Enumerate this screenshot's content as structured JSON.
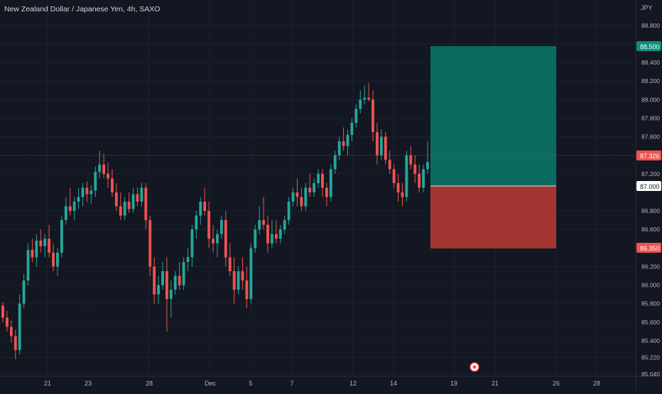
{
  "header": {
    "title": "New Zealand Dollar / Japanese Yen, 4h, SAXO"
  },
  "price_axis": {
    "currency": "JPY",
    "ticks": [
      "88.800",
      "88.600",
      "88.400",
      "88.200",
      "88.000",
      "87.800",
      "87.600",
      "87.400",
      "87.200",
      "86.800",
      "86.600",
      "86.200",
      "86.000",
      "85.800",
      "85.600",
      "85.400",
      "85.220",
      "85.040"
    ],
    "current_price_label": "87.326",
    "take_profit_label": "88.500",
    "entry_label": "87.000",
    "stop_loss_label": "86.350"
  },
  "time_axis": {
    "labels": [
      "21",
      "23",
      "28",
      "Dec",
      "5",
      "7",
      "12",
      "14",
      "19",
      "21",
      "26",
      "28"
    ]
  },
  "colors": {
    "background": "#131722",
    "up": "#26a69a",
    "down": "#ef5350",
    "profit_zone": "#0b6b5f",
    "loss_zone": "#a33533",
    "grid": "#1e2230",
    "text": "#b2b5be"
  },
  "chart_data": {
    "type": "candlestick",
    "title": "New Zealand Dollar / Japanese Yen, 4h, SAXO",
    "xlabel": "",
    "ylabel": "",
    "ylim": [
      85.04,
      88.86
    ],
    "x_tick_labels": [
      "21",
      "23",
      "28",
      "Dec",
      "5",
      "7",
      "12",
      "14",
      "19",
      "21",
      "26",
      "28"
    ],
    "current_price": 87.326,
    "position": {
      "take_profit": 88.5,
      "entry": 87.0,
      "stop_loss": 86.35
    },
    "candles": [
      [
        85.78,
        85.82,
        85.6,
        85.65
      ],
      [
        85.65,
        85.72,
        85.5,
        85.55
      ],
      [
        85.55,
        85.62,
        85.38,
        85.45
      ],
      [
        85.45,
        85.52,
        85.2,
        85.3
      ],
      [
        85.3,
        85.9,
        85.25,
        85.8
      ],
      [
        85.8,
        86.12,
        85.75,
        86.05
      ],
      [
        86.05,
        86.45,
        86.0,
        86.38
      ],
      [
        86.38,
        86.5,
        86.25,
        86.3
      ],
      [
        86.3,
        86.55,
        86.2,
        86.48
      ],
      [
        86.48,
        86.6,
        86.35,
        86.42
      ],
      [
        86.42,
        86.55,
        86.3,
        86.5
      ],
      [
        86.5,
        86.65,
        86.3,
        86.35
      ],
      [
        86.35,
        86.45,
        86.15,
        86.2
      ],
      [
        86.2,
        86.4,
        86.1,
        86.35
      ],
      [
        86.35,
        86.75,
        86.3,
        86.7
      ],
      [
        86.7,
        86.95,
        86.65,
        86.85
      ],
      [
        86.85,
        87.05,
        86.75,
        86.8
      ],
      [
        86.8,
        86.95,
        86.7,
        86.9
      ],
      [
        86.9,
        87.05,
        86.82,
        86.95
      ],
      [
        86.95,
        87.1,
        86.85,
        87.05
      ],
      [
        87.05,
        87.12,
        86.9,
        86.98
      ],
      [
        86.98,
        87.08,
        86.88,
        87.02
      ],
      [
        87.02,
        87.28,
        86.95,
        87.22
      ],
      [
        87.22,
        87.45,
        87.15,
        87.3
      ],
      [
        87.3,
        87.42,
        87.15,
        87.2
      ],
      [
        87.2,
        87.32,
        87.05,
        87.15
      ],
      [
        87.15,
        87.25,
        86.95,
        87.0
      ],
      [
        87.0,
        87.1,
        86.8,
        86.85
      ],
      [
        86.85,
        87.0,
        86.7,
        86.75
      ],
      [
        86.75,
        86.95,
        86.7,
        86.9
      ],
      [
        86.9,
        87.0,
        86.78,
        86.82
      ],
      [
        86.82,
        87.05,
        86.78,
        86.98
      ],
      [
        86.98,
        87.05,
        86.85,
        86.9
      ],
      [
        86.9,
        87.1,
        86.85,
        87.05
      ],
      [
        87.05,
        87.1,
        86.6,
        86.7
      ],
      [
        86.7,
        86.75,
        86.1,
        86.2
      ],
      [
        86.2,
        86.3,
        85.8,
        85.9
      ],
      [
        85.9,
        86.1,
        85.8,
        86.0
      ],
      [
        86.0,
        86.25,
        85.95,
        86.15
      ],
      [
        86.15,
        86.3,
        85.5,
        85.85
      ],
      [
        85.85,
        86.05,
        85.65,
        85.95
      ],
      [
        85.95,
        86.15,
        85.9,
        86.1
      ],
      [
        86.1,
        86.25,
        85.95,
        86.0
      ],
      [
        86.0,
        86.3,
        85.95,
        86.25
      ],
      [
        86.25,
        86.4,
        86.15,
        86.3
      ],
      [
        86.3,
        86.65,
        86.2,
        86.6
      ],
      [
        86.6,
        86.8,
        86.5,
        86.75
      ],
      [
        86.75,
        86.95,
        86.65,
        86.9
      ],
      [
        86.9,
        87.05,
        86.75,
        86.8
      ],
      [
        86.8,
        86.9,
        86.4,
        86.5
      ],
      [
        86.5,
        86.65,
        86.35,
        86.45
      ],
      [
        86.45,
        86.6,
        86.3,
        86.55
      ],
      [
        86.55,
        86.75,
        86.5,
        86.7
      ],
      [
        86.7,
        86.8,
        86.2,
        86.3
      ],
      [
        86.3,
        86.45,
        86.1,
        86.15
      ],
      [
        86.15,
        86.3,
        85.8,
        85.95
      ],
      [
        85.95,
        86.2,
        85.9,
        86.15
      ],
      [
        86.15,
        86.3,
        85.95,
        86.05
      ],
      [
        86.05,
        86.2,
        85.75,
        85.85
      ],
      [
        85.85,
        86.45,
        85.8,
        86.4
      ],
      [
        86.4,
        86.65,
        86.35,
        86.6
      ],
      [
        86.6,
        86.85,
        86.55,
        86.7
      ],
      [
        86.7,
        86.95,
        86.6,
        86.65
      ],
      [
        86.65,
        86.75,
        86.35,
        86.45
      ],
      [
        86.45,
        86.7,
        86.4,
        86.55
      ],
      [
        86.55,
        86.7,
        86.45,
        86.5
      ],
      [
        86.5,
        86.65,
        86.45,
        86.6
      ],
      [
        86.6,
        86.75,
        86.55,
        86.7
      ],
      [
        86.7,
        86.95,
        86.65,
        86.9
      ],
      [
        86.9,
        87.05,
        86.85,
        87.0
      ],
      [
        87.0,
        87.15,
        86.85,
        86.95
      ],
      [
        86.95,
        87.05,
        86.8,
        86.85
      ],
      [
        86.85,
        87.1,
        86.8,
        87.05
      ],
      [
        87.05,
        87.2,
        86.95,
        87.0
      ],
      [
        87.0,
        87.15,
        86.95,
        87.1
      ],
      [
        87.1,
        87.25,
        87.05,
        87.2
      ],
      [
        87.2,
        87.25,
        86.95,
        87.05
      ],
      [
        87.05,
        87.1,
        86.85,
        86.95
      ],
      [
        86.95,
        87.3,
        86.9,
        87.25
      ],
      [
        87.25,
        87.45,
        87.2,
        87.4
      ],
      [
        87.4,
        87.6,
        87.35,
        87.55
      ],
      [
        87.55,
        87.7,
        87.45,
        87.5
      ],
      [
        87.5,
        87.68,
        87.4,
        87.62
      ],
      [
        87.62,
        87.8,
        87.55,
        87.75
      ],
      [
        87.75,
        87.95,
        87.7,
        87.9
      ],
      [
        87.9,
        88.1,
        87.85,
        88.0
      ],
      [
        88.0,
        88.15,
        87.95,
        88.02
      ],
      [
        88.02,
        88.18,
        87.98,
        88.0
      ],
      [
        88.0,
        88.1,
        87.55,
        87.65
      ],
      [
        87.65,
        87.75,
        87.3,
        87.4
      ],
      [
        87.4,
        87.68,
        87.35,
        87.6
      ],
      [
        87.6,
        87.65,
        87.3,
        87.35
      ],
      [
        87.35,
        87.45,
        87.2,
        87.25
      ],
      [
        87.25,
        87.3,
        87.05,
        87.1
      ],
      [
        87.1,
        87.2,
        86.9,
        87.0
      ],
      [
        87.0,
        87.1,
        86.85,
        86.95
      ],
      [
        86.95,
        87.45,
        86.9,
        87.4
      ],
      [
        87.4,
        87.5,
        87.25,
        87.3
      ],
      [
        87.3,
        87.4,
        87.1,
        87.2
      ],
      [
        87.2,
        87.3,
        87.0,
        87.05
      ],
      [
        87.05,
        87.3,
        87.0,
        87.25
      ],
      [
        87.25,
        87.55,
        87.2,
        87.326
      ]
    ]
  }
}
